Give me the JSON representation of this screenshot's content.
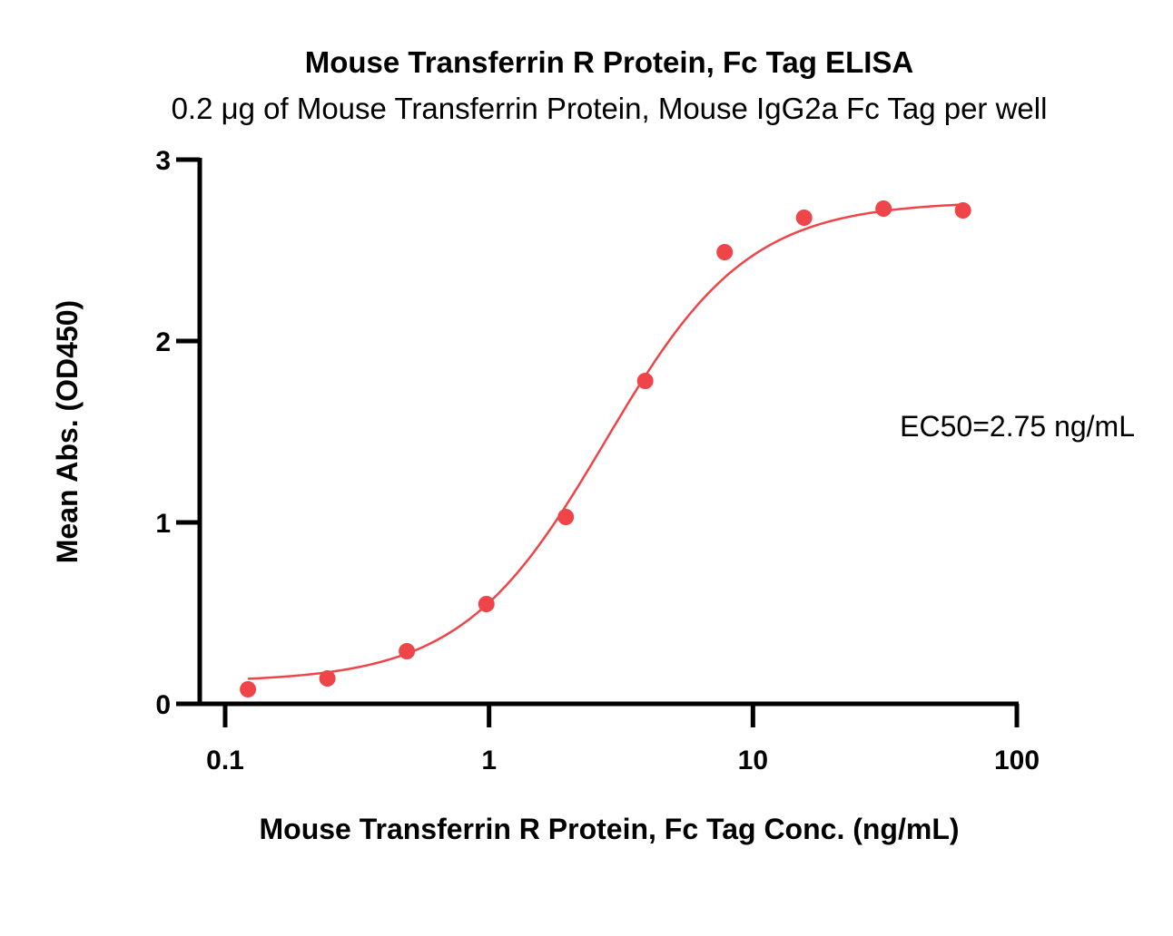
{
  "chart_data": {
    "type": "scatter",
    "title": "Mouse Transferrin R Protein, Fc Tag ELISA",
    "subtitle": "0.2 μg of Mouse Transferrin Protein, Mouse IgG2a Fc Tag per well",
    "xlabel": "Mouse Transferrin R Protein, Fc Tag Conc. (ng/mL)",
    "ylabel": "Mean Abs. (OD450)",
    "xscale": "log",
    "xlim": [
      0.1,
      100
    ],
    "ylim": [
      0,
      3
    ],
    "x_ticks": [
      0.1,
      1,
      10,
      100
    ],
    "x_tick_labels": [
      "0.1",
      "1",
      "10",
      "100"
    ],
    "y_ticks": [
      0,
      1,
      2,
      3
    ],
    "y_tick_labels": [
      "0",
      "1",
      "2",
      "3"
    ],
    "grid": false,
    "series": [
      {
        "name": "Mouse Transferrin R Protein, Fc Tag",
        "color": "#ef4448",
        "x": [
          0.122,
          0.244,
          0.488,
          0.977,
          1.953,
          3.906,
          7.813,
          15.625,
          31.25,
          62.5
        ],
        "y": [
          0.08,
          0.14,
          0.29,
          0.55,
          1.03,
          1.78,
          2.49,
          2.68,
          2.73,
          2.72
        ]
      }
    ],
    "fit": {
      "type": "4PL",
      "bottom": 0.12,
      "top": 2.77,
      "ec50": 2.75,
      "hill": 1.6,
      "x_range": [
        0.122,
        62.5
      ]
    },
    "annotation": "EC50=2.75 ng/mL"
  }
}
